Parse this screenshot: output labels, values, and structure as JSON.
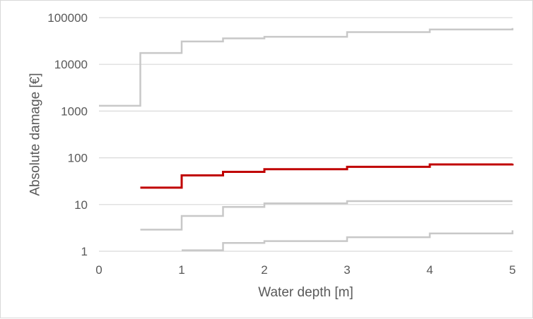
{
  "chart_data": {
    "type": "line",
    "title": "",
    "xlabel": "Water depth [m]",
    "ylabel": "Absolute damage [€]",
    "xlim": [
      0,
      5
    ],
    "ylim": [
      1,
      100000
    ],
    "y_scale": "log",
    "x_ticks": [
      "0",
      "1",
      "2",
      "3",
      "4",
      "5"
    ],
    "y_ticks": [
      "1",
      "10",
      "100",
      "1000",
      "10000",
      "100000"
    ],
    "grid": "horizontal",
    "legend": "none",
    "colors": {
      "highlight": "#c00000",
      "muted": "#c8c8c8",
      "grid": "#d9d9d9",
      "text": "#595959"
    },
    "series": [
      {
        "color": "#c8c8c8",
        "points": [
          [
            0,
            1300
          ],
          [
            0.5,
            1300
          ],
          [
            0.5,
            17500
          ],
          [
            1,
            17500
          ],
          [
            1,
            31000
          ],
          [
            1.5,
            31000
          ],
          [
            1.5,
            36000
          ],
          [
            2,
            36000
          ],
          [
            2,
            39000
          ],
          [
            3,
            39000
          ],
          [
            3,
            49000
          ],
          [
            4,
            49000
          ],
          [
            4,
            56000
          ],
          [
            5,
            56000
          ],
          [
            5,
            60000
          ]
        ]
      },
      {
        "color": "#c00000",
        "points": [
          [
            0.5,
            23
          ],
          [
            1,
            23
          ],
          [
            1,
            42
          ],
          [
            1.5,
            42
          ],
          [
            1.5,
            50
          ],
          [
            2,
            50
          ],
          [
            2,
            57
          ],
          [
            3,
            57
          ],
          [
            3,
            64
          ],
          [
            4,
            64
          ],
          [
            4,
            72
          ],
          [
            5,
            72
          ],
          [
            5,
            75
          ]
        ]
      },
      {
        "color": "#c8c8c8",
        "points": [
          [
            0.5,
            2.9
          ],
          [
            1,
            2.9
          ],
          [
            1,
            5.7
          ],
          [
            1.5,
            5.7
          ],
          [
            1.5,
            8.9
          ],
          [
            2,
            8.9
          ],
          [
            2,
            10.6
          ],
          [
            3,
            10.6
          ],
          [
            3,
            11.8
          ],
          [
            5,
            11.8
          ]
        ]
      },
      {
        "color": "#c8c8c8",
        "points": [
          [
            1,
            1.05
          ],
          [
            1.5,
            1.05
          ],
          [
            1.5,
            1.5
          ],
          [
            2,
            1.5
          ],
          [
            2,
            1.65
          ],
          [
            3,
            1.65
          ],
          [
            3,
            2.0
          ],
          [
            4,
            2.0
          ],
          [
            4,
            2.4
          ],
          [
            5,
            2.4
          ],
          [
            5,
            2.8
          ]
        ]
      }
    ]
  }
}
